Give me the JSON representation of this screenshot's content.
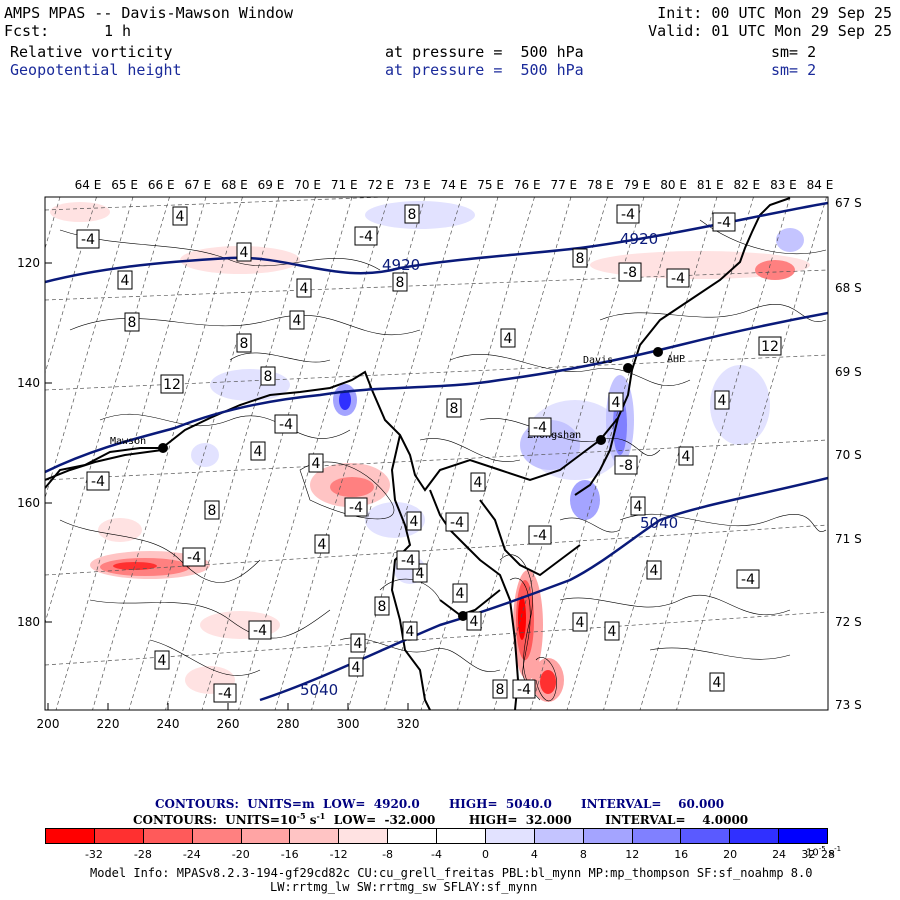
{
  "header": {
    "title": "AMPS MPAS -- Davis-Mawson Window",
    "init": "Init: 00 UTC Mon 29 Sep 25",
    "fcst_label": "Fcst:",
    "fcst_value": "1 h",
    "valid": "Valid: 01 UTC Mon 29 Sep 25",
    "field1_name": "Relative vorticity",
    "field1_pressure": "at pressure =  500 hPa",
    "field1_sm": "sm= 2",
    "field2_name": "Geopotential height",
    "field2_pressure": "at pressure =  500 hPa",
    "field2_sm": "sm= 2"
  },
  "map": {
    "top_longitudes": [
      "64 E",
      "65 E",
      "66 E",
      "67 E",
      "68 E",
      "69 E",
      "70 E",
      "71 E",
      "72 E",
      "73 E",
      "74 E",
      "75 E",
      "76 E",
      "77 E",
      "78 E",
      "79 E",
      "80 E",
      "81 E",
      "82 E",
      "83 E",
      "84 E"
    ],
    "right_latitudes": [
      "67 S",
      "68 S",
      "69 S",
      "70 S",
      "71 S",
      "72 S",
      "73 S"
    ],
    "left_ticks": [
      "120",
      "140",
      "160",
      "180"
    ],
    "bottom_ticks": [
      "200",
      "220",
      "240",
      "260",
      "280",
      "300",
      "320"
    ],
    "stations": [
      "Mawson",
      "Davis",
      "Zhongshan",
      "AHP"
    ],
    "height_labels": [
      "4920",
      "4920",
      "5040",
      "5040"
    ],
    "vort_labels": [
      "4",
      "-4",
      "4",
      "-4",
      "8",
      "-4",
      "-4",
      "4",
      "4",
      "8",
      "8",
      "-8",
      "-4",
      "8",
      "4",
      "8",
      "4",
      "12",
      "12",
      "8",
      "8",
      "4",
      "8",
      "-4",
      "4",
      "-4",
      "4",
      "-8",
      "4",
      "-4",
      "4",
      "-4",
      "-4",
      "4",
      "4",
      "4",
      "4",
      "-4",
      "4",
      "-4",
      "8",
      "4",
      "-4",
      "4",
      "4",
      "4",
      "4",
      "-4",
      "4",
      "4",
      "4",
      "-4",
      "8",
      "-4",
      "4",
      "4",
      "-4"
    ],
    "height_contour_color": "#0a1a7a",
    "coast_color": "#000000"
  },
  "legend": {
    "contours1": "CONTOURS:  UNITS=m  LOW=  4920.0       HIGH=  5040.0       INTERVAL=    60.000",
    "contours2": "CONTOURS:  UNITS=10",
    "contours2_exp": "-5",
    "contours2_unit": " s",
    "contours2_exp2": "-1",
    "contours2_rest": "  LOW=  -32.000        HIGH=  32.000        INTERVAL=    4.0000",
    "colorbar_colors": [
      "#ff0000",
      "#ff3030",
      "#ff5a5a",
      "#ff8080",
      "#ffa4a4",
      "#ffc4c4",
      "#ffe2e2",
      "#ffffff",
      "#ffffff",
      "#e2e2ff",
      "#c4c4ff",
      "#a4a4ff",
      "#8080ff",
      "#5a5aff",
      "#3030ff",
      "#0000ff"
    ],
    "colorbar_ticks": [
      "-32",
      "-28",
      "-24",
      "-20",
      "-16",
      "-12",
      "-8",
      "-4",
      "0",
      "4",
      "8",
      "12",
      "16",
      "20",
      "24",
      "28",
      "32"
    ],
    "colorbar_unit": "10",
    "colorbar_unit_exp": "-5",
    "colorbar_unit_s": " s",
    "colorbar_unit_exp2": "-1"
  },
  "model_info": {
    "line1": "Model Info: MPASv8.2.3-194-gf29cd82c CU:cu_grell_freitas PBL:bl_mynn MP:mp_thompson SF:sf_noahmp 8.0",
    "line2": "LW:rrtmg_lw SW:rrtmg_sw SFLAY:sf_mynn"
  }
}
